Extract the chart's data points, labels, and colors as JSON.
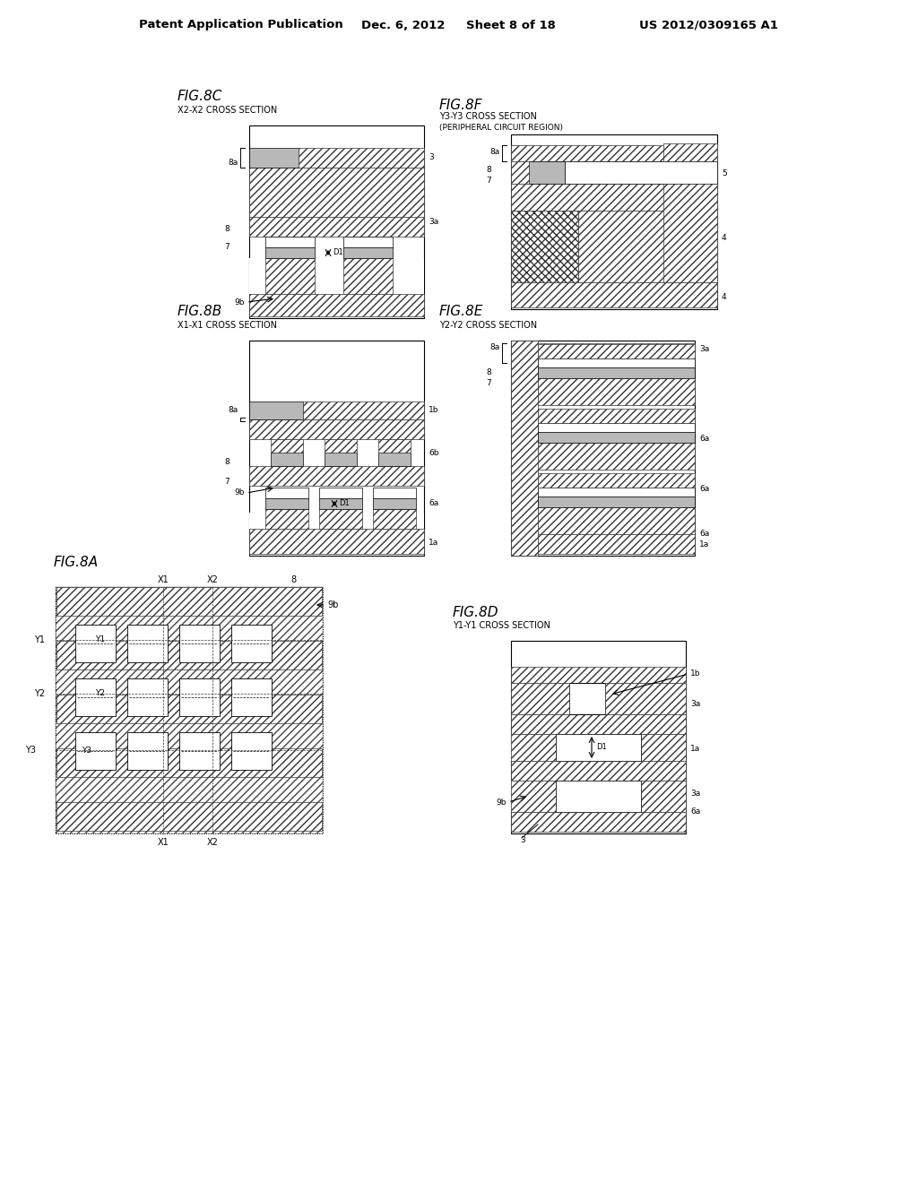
{
  "header_left": "Patent Application Publication",
  "header_mid": "Dec. 6, 2012   Sheet 8 of 18",
  "header_right": "US 2012/0309165 A1",
  "bg": "#ffffff",
  "H": "////",
  "figures": [
    "8A",
    "8B",
    "8C",
    "8D",
    "8E",
    "8F"
  ]
}
